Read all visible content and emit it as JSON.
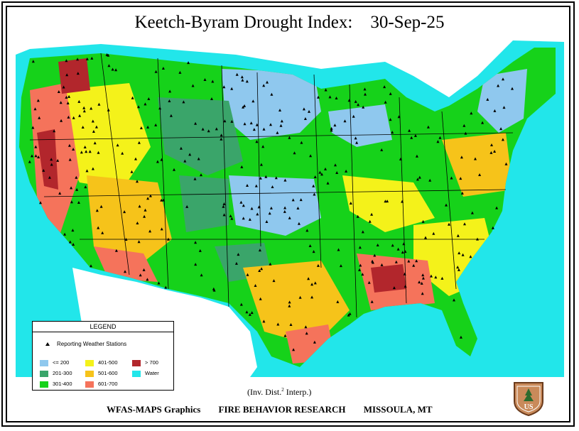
{
  "map": {
    "title": "Keetch-Byram Drought Index:    30-Sep-25",
    "interpolation_note": "(Inv. Dist.",
    "interpolation_power": "2",
    "interpolation_suffix": " Interp.)",
    "water_color": "#22e6ea",
    "land_outside_color": "#ffffff"
  },
  "legend": {
    "title": "LEGEND",
    "station_label": "Reporting Weather Stations",
    "classes": [
      {
        "label": "<= 200",
        "color": "#8fc8ee"
      },
      {
        "label": "201-300",
        "color": "#3aa56a"
      },
      {
        "label": "301-400",
        "color": "#16d21a"
      },
      {
        "label": "401-500",
        "color": "#f4f21a"
      },
      {
        "label": "501-600",
        "color": "#f6c31a"
      },
      {
        "label": "601-700",
        "color": "#f5735b"
      },
      {
        "label": "> 700",
        "color": "#b2262c"
      },
      {
        "label": "Water",
        "color": "#22e6ea"
      }
    ]
  },
  "footer": {
    "graphics": "WFAS-MAPS Graphics",
    "research": "FIRE BEHAVIOR RESEARCH",
    "location": "MISSOULA, MT"
  },
  "logo": {
    "icon": "forest-service-shield-icon",
    "text": "US"
  }
}
